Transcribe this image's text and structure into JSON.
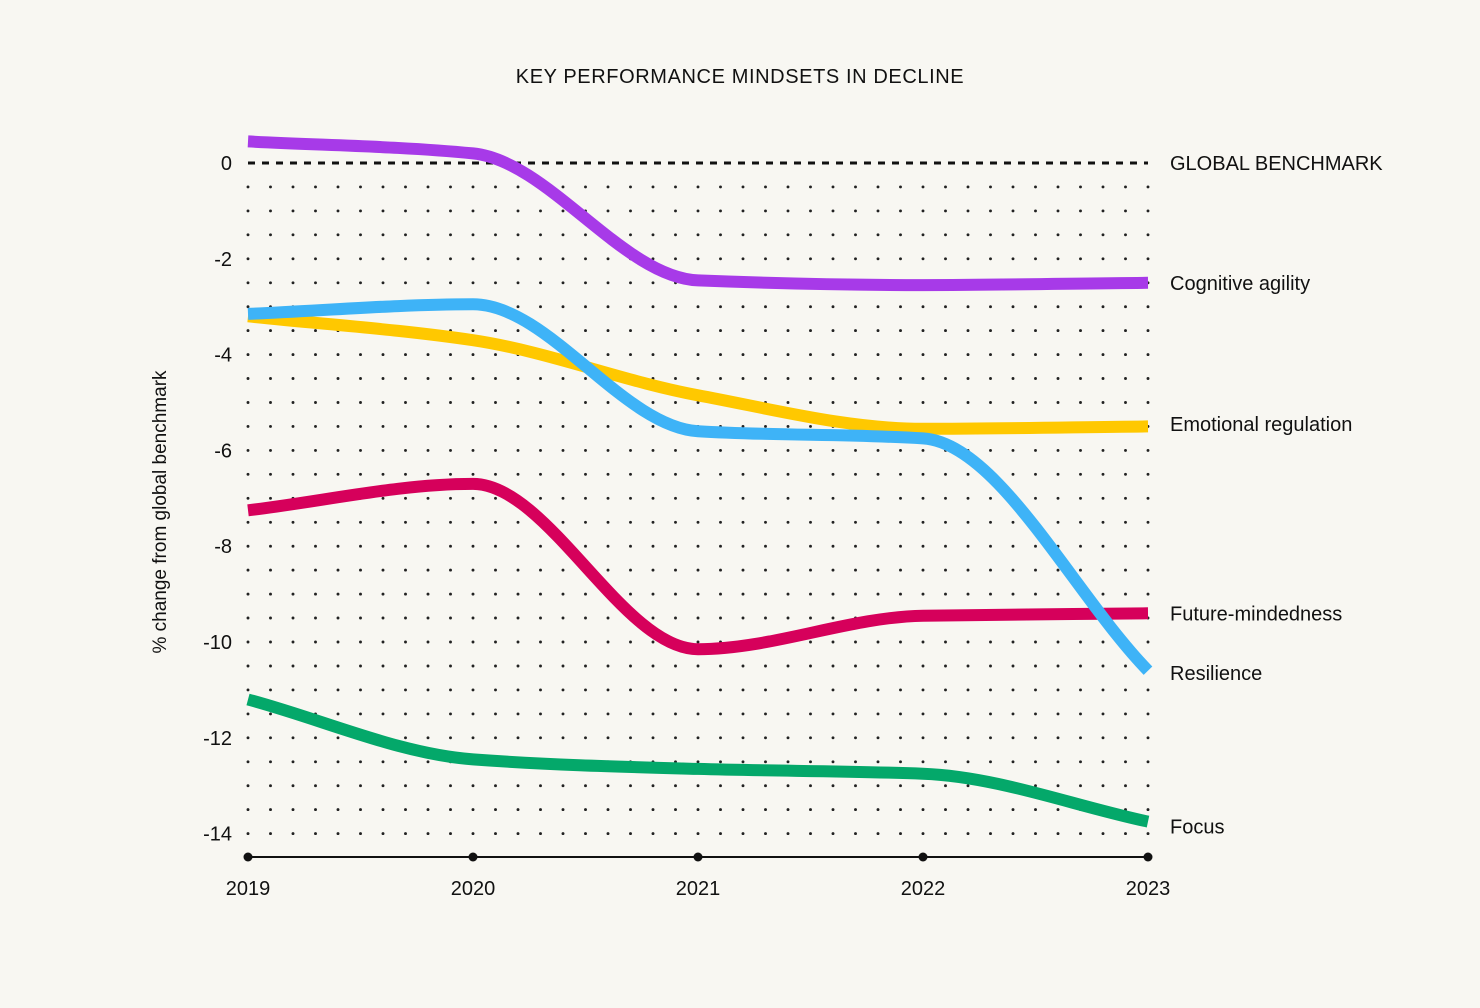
{
  "chart_data": {
    "type": "line",
    "title": "KEY PERFORMANCE MINDSETS IN DECLINE",
    "xlabel": "",
    "ylabel": "% change from global benchmark",
    "x": [
      2019,
      2020,
      2021,
      2022,
      2023
    ],
    "x_tick_labels": [
      "2019",
      "2020",
      "2021",
      "2022",
      "2023"
    ],
    "y_ticks": [
      0,
      -2,
      -4,
      -6,
      -8,
      -10,
      -12,
      -14
    ],
    "y_tick_labels": [
      "0",
      "-2",
      "-4",
      "-6",
      "-8",
      "-10",
      "-12",
      "-14"
    ],
    "ylim": [
      -14.5,
      0.8
    ],
    "grid": "dotted",
    "legend": "direct labels at right end of lines",
    "benchmark": {
      "label": "GLOBAL BENCHMARK",
      "value": 0,
      "style": "dashed"
    },
    "series": [
      {
        "name": "Cognitive agility",
        "color": "#a73ae8",
        "values": [
          0.45,
          0.2,
          -2.45,
          -2.55,
          -2.5
        ]
      },
      {
        "name": "Emotional regulation",
        "color": "#ffc800",
        "values": [
          -3.2,
          -3.7,
          -4.85,
          -5.55,
          -5.5
        ]
      },
      {
        "name": "Resilience",
        "color": "#3eb3f7",
        "values": [
          -3.15,
          -2.95,
          -5.6,
          -5.75,
          -10.6
        ]
      },
      {
        "name": "Future-mindedness",
        "color": "#d6005b",
        "values": [
          -7.25,
          -6.7,
          -10.15,
          -9.45,
          -9.4
        ]
      },
      {
        "name": "Focus",
        "color": "#04a86a",
        "values": [
          -11.2,
          -12.45,
          -12.65,
          -12.75,
          -13.75
        ]
      }
    ],
    "label_positions": {
      "Cognitive agility": -2.5,
      "Emotional regulation": -5.45,
      "Future-mindedness": -9.4,
      "Resilience": -10.65,
      "Focus": -13.85
    }
  }
}
